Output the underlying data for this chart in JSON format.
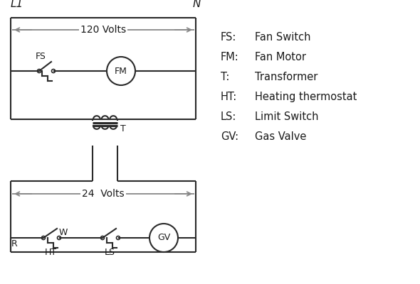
{
  "bg_color": "#ffffff",
  "line_color": "#2a2a2a",
  "arrow_color": "#888888",
  "text_color": "#1a1a1a",
  "legend": [
    [
      "FS:  ",
      "Fan Switch"
    ],
    [
      "FM:  ",
      "Fan Motor"
    ],
    [
      "T:    ",
      "Transformer"
    ],
    [
      "HT:  ",
      "Heating thermostat"
    ],
    [
      "LS:  ",
      "Limit Switch"
    ],
    [
      "GV:  ",
      "Gas Valve"
    ]
  ],
  "L1_label": "L1",
  "N_label": "N",
  "v120_label": "120 Volts",
  "v24_label": "24  Volts",
  "figsize": [
    5.9,
    4.0
  ],
  "dpi": 100
}
